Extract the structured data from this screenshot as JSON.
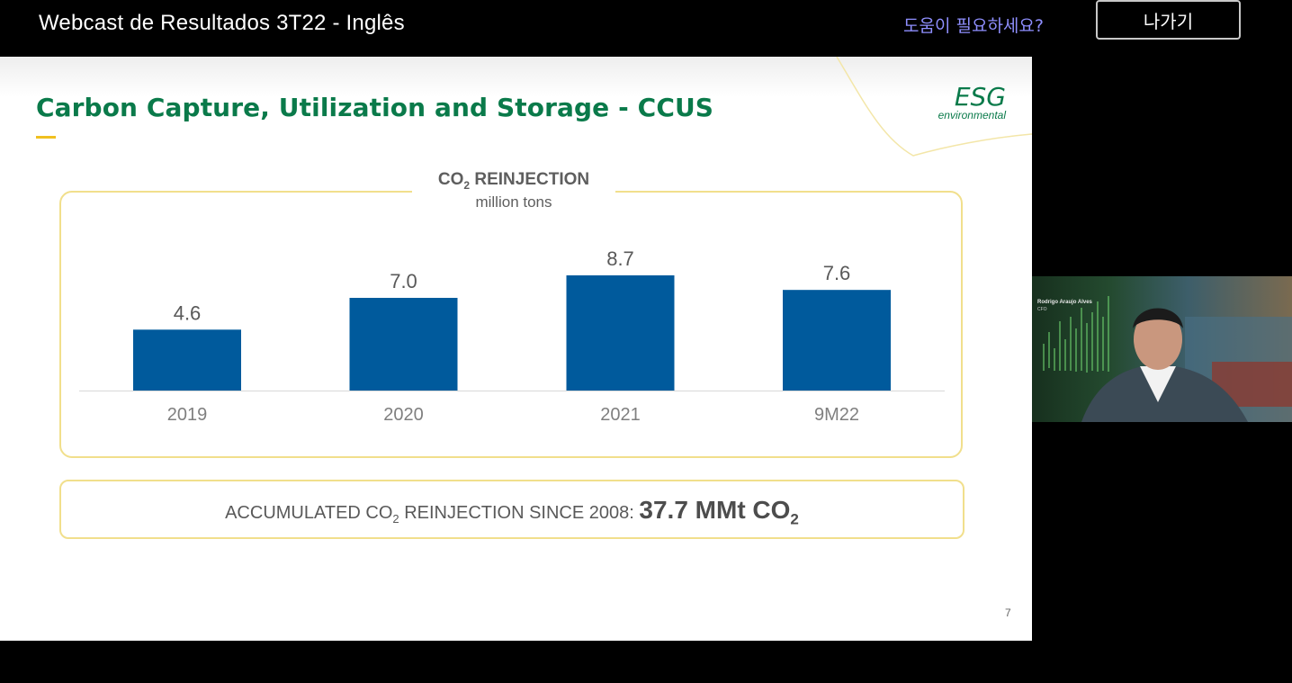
{
  "window": {
    "title": "Webcast de Resultados 3T22 - Inglês",
    "help_label": "도움이 필요하세요?",
    "exit_label": "나가기"
  },
  "slide": {
    "title": "Carbon Capture, Utilization and Storage - CCUS",
    "logo_esg": "ESG",
    "logo_sub": "environmental",
    "page_number": "7",
    "accumulated": {
      "label_prefix": "ACCUMULATED CO",
      "label_sub": "2",
      "label_suffix": " REINJECTION SINCE 2008: ",
      "value": "37.7 MMt CO",
      "value_sub": "2"
    }
  },
  "chart_data": {
    "type": "bar",
    "title_main": "CO",
    "title_sub": "2",
    "title_rest": " REINJECTION",
    "subtitle": "million tons",
    "categories": [
      "2019",
      "2020",
      "2021",
      "9M22"
    ],
    "values": [
      4.6,
      7.0,
      8.7,
      7.6
    ],
    "value_labels": [
      "4.6",
      "7.0",
      "8.7",
      "7.6"
    ],
    "ylim": [
      0,
      10
    ],
    "bar_color": "#005a9c",
    "grid": false,
    "legend": "none"
  },
  "video": {
    "speaker_name": "Rodrigo Araujo Alves",
    "speaker_role": "CFO"
  },
  "colors": {
    "title_green": "#0a7a4a",
    "accent_yellow": "#f0c020",
    "help_link": "#8f8fff"
  }
}
